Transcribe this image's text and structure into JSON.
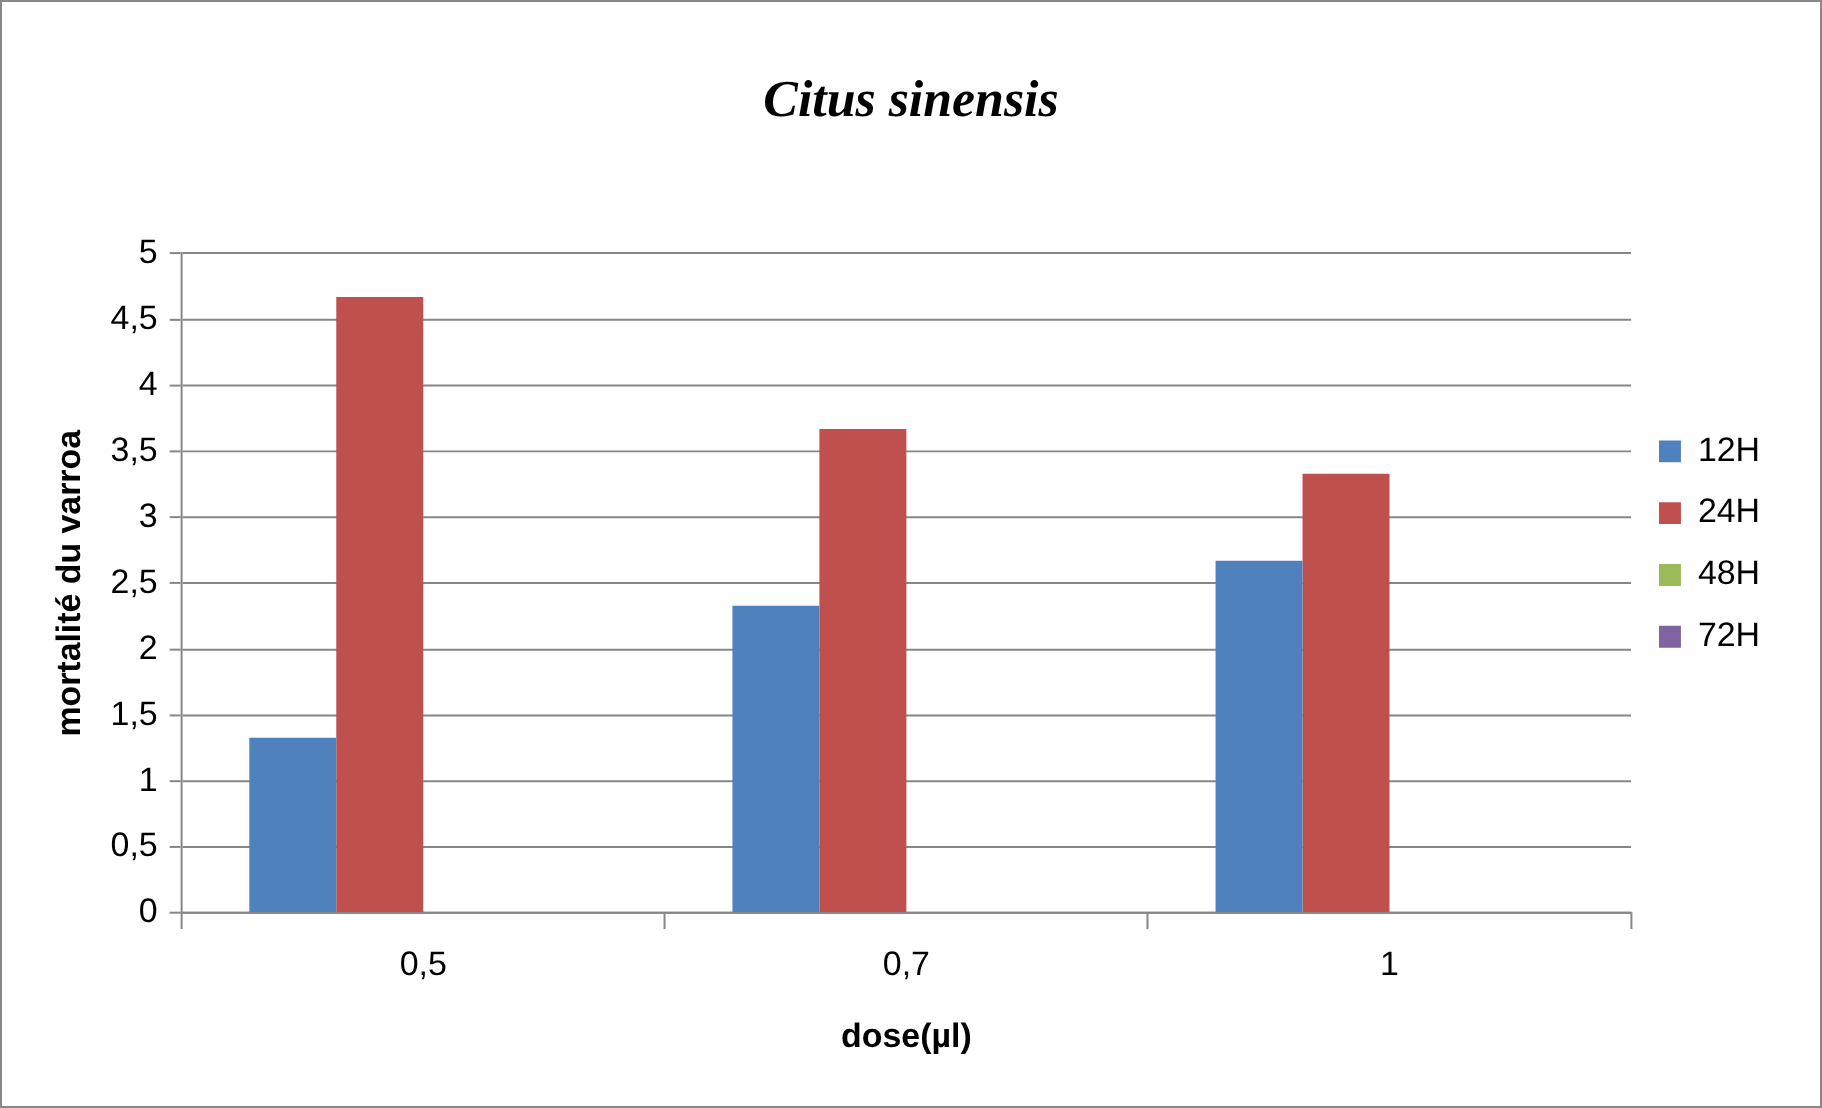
{
  "chart_data": {
    "type": "bar",
    "title": "Citus sinensis",
    "xlabel": "dose(µl)",
    "ylabel": "mortalité du varroa",
    "categories": [
      "0,5",
      "0,7",
      "1"
    ],
    "series": [
      {
        "name": "12H",
        "color": "#4f81bd",
        "values": [
          1.33,
          2.33,
          2.67
        ]
      },
      {
        "name": "24H",
        "color": "#c0504d",
        "values": [
          4.67,
          3.67,
          3.33
        ]
      },
      {
        "name": "48H",
        "color": "#9bbb59",
        "values": [
          0,
          0,
          0
        ]
      },
      {
        "name": "72H",
        "color": "#8064a2",
        "values": [
          0,
          0,
          0
        ]
      }
    ],
    "ylim": [
      0,
      5
    ],
    "yticks": [
      0,
      {
        "value": 0.5,
        "label": "0,5"
      },
      1,
      {
        "value": 1.5,
        "label": "1,5"
      },
      2,
      {
        "value": 2.5,
        "label": "2,5"
      },
      3,
      {
        "value": 3.5,
        "label": "3,5"
      },
      4,
      {
        "value": 4.5,
        "label": "4,5"
      },
      5
    ],
    "grid": "y",
    "legend": "right"
  }
}
